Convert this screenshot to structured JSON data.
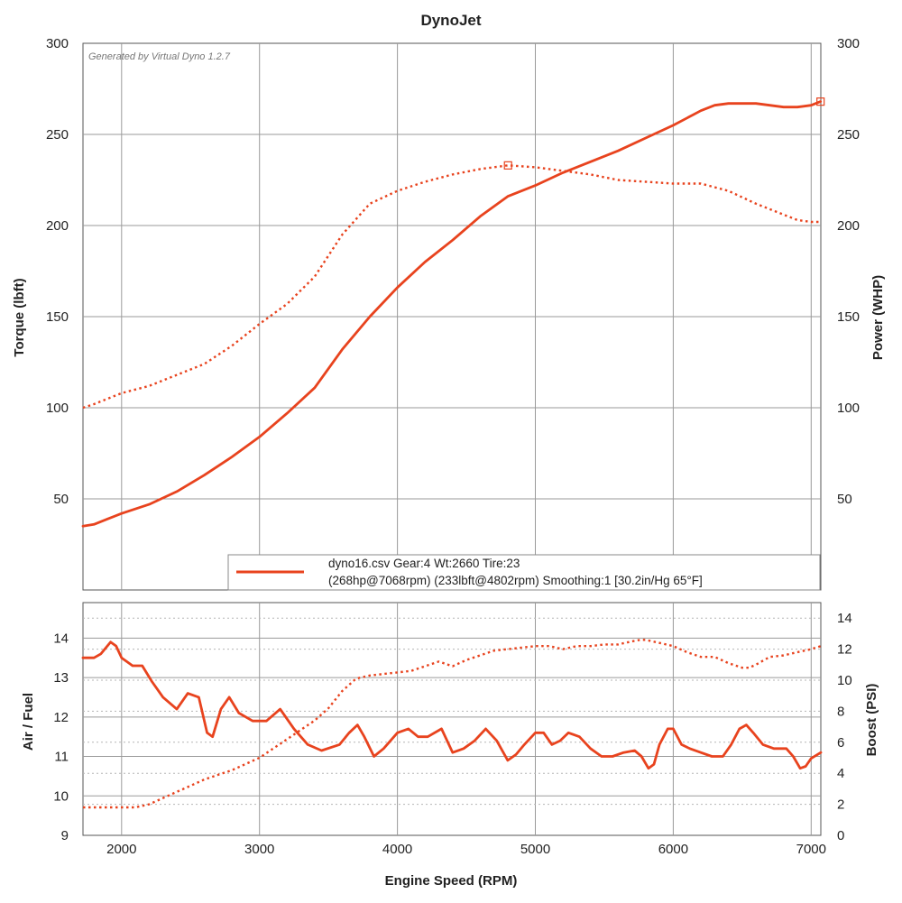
{
  "chart_data": [
    {
      "type": "line",
      "title": "DynoJet",
      "watermark": "Generated by Virtual Dyno 1.2.7",
      "xlabel": "Engine Speed (RPM)",
      "ylabel": "Torque (lbft)",
      "y2label": "Power (WHP)",
      "xlim": [
        1720,
        7070
      ],
      "ylim": [
        0,
        300
      ],
      "y2lim": [
        0,
        300
      ],
      "xticks": [
        2000,
        3000,
        4000,
        5000,
        6000,
        7000
      ],
      "yticks": [
        50,
        100,
        150,
        200,
        250,
        300
      ],
      "y2ticks": [
        50,
        100,
        150,
        200,
        250,
        300
      ],
      "grid": true,
      "series": [
        {
          "name": "Power (WHP)",
          "axis": "y2",
          "style": "solid",
          "color": "#e8431e",
          "x": [
            1720,
            1800,
            1900,
            2000,
            2200,
            2400,
            2600,
            2800,
            3000,
            3200,
            3400,
            3600,
            3800,
            4000,
            4200,
            4400,
            4600,
            4800,
            5000,
            5200,
            5400,
            5600,
            5800,
            6000,
            6100,
            6200,
            6300,
            6400,
            6500,
            6600,
            6700,
            6800,
            6900,
            7000,
            7068
          ],
          "values": [
            35,
            36,
            39,
            42,
            47,
            54,
            63,
            73,
            84,
            97,
            111,
            132,
            150,
            166,
            180,
            192,
            205,
            216,
            222,
            229,
            235,
            241,
            248,
            255,
            259,
            263,
            266,
            267,
            267,
            267,
            266,
            265,
            265,
            266,
            268
          ]
        },
        {
          "name": "Torque (lbft)",
          "axis": "y",
          "style": "dotted",
          "color": "#e8431e",
          "x": [
            1720,
            1800,
            1900,
            2000,
            2200,
            2400,
            2600,
            2800,
            3000,
            3200,
            3400,
            3600,
            3800,
            4000,
            4200,
            4400,
            4600,
            4802,
            5000,
            5200,
            5400,
            5600,
            5800,
            6000,
            6200,
            6400,
            6600,
            6800,
            6900,
            7000,
            7068
          ],
          "values": [
            100,
            102,
            105,
            108,
            112,
            118,
            124,
            134,
            146,
            157,
            172,
            195,
            212,
            219,
            224,
            228,
            231,
            233,
            232,
            230,
            228,
            225,
            224,
            223,
            223,
            219,
            212,
            206,
            203,
            202,
            202
          ]
        }
      ],
      "markers": [
        {
          "x": 4802,
          "y": 233,
          "axis": "y"
        },
        {
          "x": 7068,
          "y": 268,
          "axis": "y2"
        }
      ],
      "legend": {
        "placement": "bottom-right",
        "line1": "dyno16.csv Gear:4 Wt:2660 Tire:23",
        "line2": "(268hp@7068rpm) (233lbft@4802rpm) Smoothing:1 [30.2in/Hg 65°F]"
      }
    },
    {
      "type": "line",
      "xlabel": "Engine Speed (RPM)",
      "ylabel": "Air / Fuel",
      "y2label": "Boost (PSI)",
      "xlim": [
        1720,
        7070
      ],
      "ylim": [
        9,
        14.9
      ],
      "y2lim": [
        0,
        15
      ],
      "xticks": [
        2000,
        3000,
        4000,
        5000,
        6000,
        7000
      ],
      "yticks": [
        9,
        10,
        11,
        12,
        13,
        14
      ],
      "y2ticks": [
        0,
        2,
        4,
        6,
        8,
        10,
        12,
        14
      ],
      "grid": true,
      "series": [
        {
          "name": "Air / Fuel",
          "axis": "y",
          "style": "solid",
          "color": "#e8431e",
          "x": [
            1720,
            1800,
            1850,
            1920,
            1960,
            2000,
            2080,
            2150,
            2220,
            2300,
            2400,
            2480,
            2560,
            2620,
            2660,
            2720,
            2780,
            2850,
            2950,
            3050,
            3150,
            3250,
            3350,
            3450,
            3580,
            3650,
            3710,
            3760,
            3830,
            3900,
            4000,
            4080,
            4150,
            4220,
            4320,
            4400,
            4480,
            4560,
            4640,
            4720,
            4800,
            4860,
            4920,
            5000,
            5060,
            5120,
            5180,
            5240,
            5320,
            5400,
            5480,
            5560,
            5640,
            5720,
            5770,
            5820,
            5860,
            5900,
            5960,
            6000,
            6060,
            6120,
            6200,
            6280,
            6360,
            6420,
            6480,
            6530,
            6580,
            6650,
            6730,
            6820,
            6870,
            6920,
            6960,
            7000,
            7070
          ],
          "values": [
            13.5,
            13.5,
            13.6,
            13.9,
            13.8,
            13.5,
            13.3,
            13.3,
            12.9,
            12.5,
            12.2,
            12.6,
            12.5,
            11.6,
            11.5,
            12.2,
            12.5,
            12.1,
            11.9,
            11.9,
            12.2,
            11.7,
            11.3,
            11.15,
            11.3,
            11.6,
            11.8,
            11.5,
            11.0,
            11.2,
            11.6,
            11.7,
            11.5,
            11.5,
            11.7,
            11.1,
            11.2,
            11.4,
            11.7,
            11.4,
            10.9,
            11.05,
            11.3,
            11.6,
            11.6,
            11.3,
            11.4,
            11.6,
            11.5,
            11.2,
            11.0,
            11.0,
            11.1,
            11.15,
            11.0,
            10.7,
            10.8,
            11.3,
            11.7,
            11.7,
            11.3,
            11.2,
            11.1,
            11.0,
            11.0,
            11.3,
            11.7,
            11.8,
            11.6,
            11.3,
            11.2,
            11.2,
            11.0,
            10.7,
            10.75,
            10.95,
            11.1
          ]
        },
        {
          "name": "Boost (PSI)",
          "axis": "y2",
          "style": "dotted",
          "color": "#e8431e",
          "x": [
            1720,
            1800,
            1900,
            2000,
            2100,
            2200,
            2300,
            2400,
            2500,
            2600,
            2700,
            2800,
            2900,
            3000,
            3100,
            3200,
            3300,
            3400,
            3500,
            3600,
            3700,
            3800,
            3900,
            4000,
            4100,
            4200,
            4300,
            4400,
            4500,
            4600,
            4700,
            4800,
            4900,
            5000,
            5100,
            5200,
            5300,
            5400,
            5500,
            5600,
            5700,
            5760,
            5800,
            5900,
            6000,
            6100,
            6200,
            6300,
            6400,
            6500,
            6550,
            6600,
            6700,
            6800,
            6900,
            7000,
            7070
          ],
          "values": [
            1.8,
            1.8,
            1.8,
            1.8,
            1.8,
            2.0,
            2.4,
            2.8,
            3.2,
            3.6,
            3.9,
            4.2,
            4.6,
            5.0,
            5.6,
            6.2,
            6.8,
            7.4,
            8.2,
            9.3,
            10.1,
            10.3,
            10.4,
            10.5,
            10.6,
            10.9,
            11.2,
            10.9,
            11.3,
            11.6,
            11.9,
            12.0,
            12.1,
            12.2,
            12.2,
            12.0,
            12.2,
            12.2,
            12.3,
            12.3,
            12.5,
            12.6,
            12.6,
            12.4,
            12.2,
            11.8,
            11.5,
            11.5,
            11.1,
            10.8,
            10.8,
            11.0,
            11.5,
            11.6,
            11.8,
            12.0,
            12.2
          ]
        }
      ]
    }
  ]
}
